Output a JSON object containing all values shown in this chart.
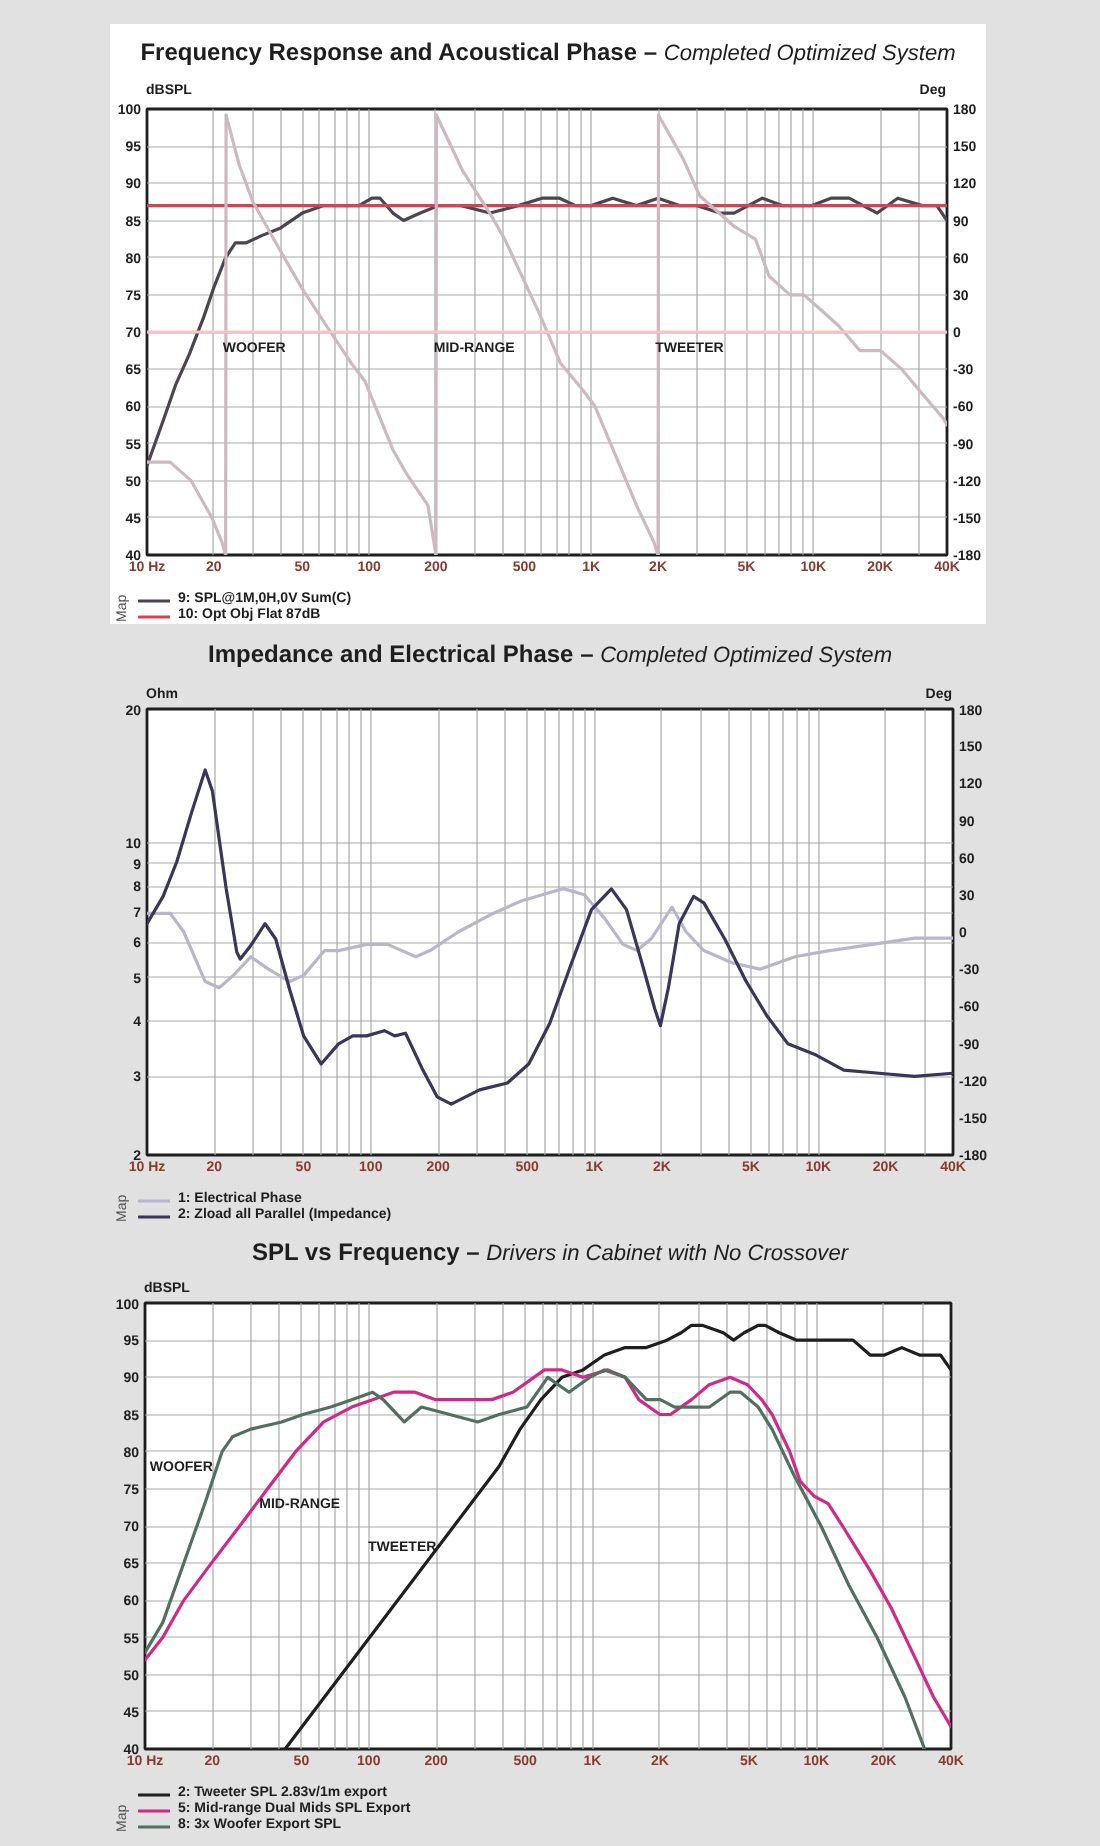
{
  "chart_data": [
    {
      "type": "line",
      "title": "Frequency Response and Acoustical Phase –",
      "subtitle": "Completed Optimized System",
      "ylabel": "dBSPL",
      "y2label": "Deg",
      "legend_title": "Map",
      "log": "x",
      "grid": true,
      "legend": "bottom left",
      "xlim": [
        10,
        40000
      ],
      "xticks": [
        {
          "value": 10,
          "label": "10 Hz"
        },
        20,
        {
          "value": 30,
          "label": null
        },
        {
          "value": 40,
          "label": null
        },
        50,
        {
          "value": 60,
          "label": null
        },
        {
          "value": 70,
          "label": null
        },
        {
          "value": 80,
          "label": null
        },
        {
          "value": 90,
          "label": null
        },
        100,
        200,
        {
          "value": 300,
          "label": null
        },
        {
          "value": 400,
          "label": null
        },
        500,
        {
          "value": 600,
          "label": null
        },
        {
          "value": 700,
          "label": null
        },
        {
          "value": 800,
          "label": null
        },
        {
          "value": 900,
          "label": null
        },
        {
          "value": 1000,
          "label": "1K"
        },
        {
          "value": 2000,
          "label": "2K"
        },
        {
          "value": 3000,
          "label": null
        },
        {
          "value": 4000,
          "label": null
        },
        {
          "value": 5000,
          "label": "5K"
        },
        {
          "value": 6000,
          "label": null
        },
        {
          "value": 7000,
          "label": null
        },
        {
          "value": 8000,
          "label": null
        },
        {
          "value": 9000,
          "label": null
        },
        {
          "value": 10000,
          "label": "10K"
        },
        {
          "value": 20000,
          "label": "20K"
        },
        {
          "value": 30000,
          "label": null
        },
        {
          "value": 40000,
          "label": "40K"
        }
      ],
      "ylim": [
        40,
        100
      ],
      "yticks": [
        40,
        45,
        50,
        55,
        60,
        65,
        70,
        75,
        80,
        85,
        90,
        95,
        100
      ],
      "y2lim": [
        -180,
        180
      ],
      "y2ticks": [
        -180,
        -150,
        -120,
        -90,
        -60,
        -30,
        0,
        30,
        60,
        90,
        120,
        150,
        180
      ],
      "ref_lines": [
        {
          "axis": "y2",
          "value": 0,
          "color": "#f3c6c6"
        }
      ],
      "annotations": [
        "WOOFER",
        "MID-RANGE",
        "TWEETER"
      ],
      "series": [
        {
          "name": "9: SPL@1M,0H,0V Sum(C)",
          "color": "#4d4352",
          "x": [
            10,
            11.8,
            13.5,
            15.5,
            18,
            20,
            22.6,
            25,
            28,
            33,
            40,
            50,
            62,
            75,
            90,
            103,
            112,
            128,
            143,
            170,
            205,
            260,
            350,
            470,
            600,
            720,
            850,
            1000,
            1250,
            1600,
            2000,
            2500,
            3000,
            3800,
            4400,
            5900,
            7300,
            9800,
            12000,
            14500,
            19400,
            24000,
            31000,
            36000,
            40000
          ],
          "values": [
            52,
            58,
            63,
            67,
            72,
            76,
            80,
            82,
            82,
            83,
            84,
            86,
            87,
            87,
            87,
            88,
            88,
            86,
            85,
            86,
            87,
            87,
            86,
            87,
            88,
            88,
            87,
            87,
            88,
            87,
            88,
            87,
            87,
            86,
            86,
            88,
            87,
            87,
            88,
            88,
            86,
            88,
            87,
            87,
            85
          ]
        },
        {
          "name": "10: Opt Obj Flat 87dB",
          "color": "#d9414e",
          "x": [
            10,
            40000
          ],
          "values": [
            87,
            87
          ]
        },
        {
          "color": "#cdb9c1",
          "axis": "y2",
          "x": [
            10,
            12.7,
            15.8,
            19.6,
            21.8,
            22.6
          ],
          "values": [
            -105,
            -105,
            -120,
            -150,
            -170,
            -180
          ]
        },
        {
          "color": "#cdb9c1",
          "axis": "y2",
          "x": [
            22.6,
            22.7
          ],
          "values": [
            -180,
            175
          ]
        },
        {
          "color": "#cdb9c1",
          "axis": "y2",
          "x": [
            22.7,
            26,
            30,
            40,
            50,
            67,
            83,
            96,
            128,
            148,
            184,
            198,
            200
          ],
          "values": [
            175,
            135,
            105,
            65,
            35,
            0,
            -25,
            -40,
            -95,
            -115,
            -140,
            -175,
            -180
          ]
        },
        {
          "color": "#cdb9c1",
          "axis": "y2",
          "x": [
            200,
            201
          ],
          "values": [
            -180,
            175
          ]
        },
        {
          "color": "#cdb9c1",
          "axis": "y2",
          "x": [
            201,
            264,
            352,
            408,
            488,
            584,
            726,
            900,
            1040,
            1290,
            1600,
            1920,
            2000
          ],
          "values": [
            175,
            130,
            95,
            75,
            45,
            15,
            -25,
            -45,
            -60,
            -100,
            -140,
            -170,
            -180
          ]
        },
        {
          "color": "#cdb9c1",
          "axis": "y2",
          "x": [
            2000,
            2010
          ],
          "values": [
            -180,
            175
          ]
        },
        {
          "color": "#cdb9c1",
          "axis": "y2",
          "x": [
            2010,
            2590,
            3080,
            3820,
            4420,
            5490,
            6330,
            7860,
            9080,
            10500,
            13000,
            16200,
            20100,
            25000,
            31000,
            38600,
            40000
          ],
          "values": [
            175,
            140,
            110,
            95,
            85,
            75,
            45,
            30,
            30,
            20,
            5,
            -15,
            -15,
            -30,
            -50,
            -70,
            -75
          ]
        }
      ]
    },
    {
      "type": "line",
      "title": "Impedance and Electrical Phase –",
      "subtitle": "Completed Optimized System",
      "ylabel": "Ohm",
      "y2label": "Deg",
      "legend_title": "Map",
      "log": "xy",
      "grid": true,
      "legend": "bottom left",
      "xlim": [
        10,
        40000
      ],
      "xticks": [
        {
          "value": 10,
          "label": "10 Hz"
        },
        20,
        {
          "value": 30,
          "label": null
        },
        {
          "value": 40,
          "label": null
        },
        50,
        {
          "value": 60,
          "label": null
        },
        {
          "value": 70,
          "label": null
        },
        {
          "value": 80,
          "label": null
        },
        {
          "value": 90,
          "label": null
        },
        100,
        200,
        {
          "value": 300,
          "label": null
        },
        {
          "value": 400,
          "label": null
        },
        500,
        {
          "value": 600,
          "label": null
        },
        {
          "value": 700,
          "label": null
        },
        {
          "value": 800,
          "label": null
        },
        {
          "value": 900,
          "label": null
        },
        {
          "value": 1000,
          "label": "1K"
        },
        {
          "value": 2000,
          "label": "2K"
        },
        {
          "value": 3000,
          "label": null
        },
        {
          "value": 4000,
          "label": null
        },
        {
          "value": 5000,
          "label": "5K"
        },
        {
          "value": 6000,
          "label": null
        },
        {
          "value": 7000,
          "label": null
        },
        {
          "value": 8000,
          "label": null
        },
        {
          "value": 9000,
          "label": null
        },
        {
          "value": 10000,
          "label": "10K"
        },
        {
          "value": 20000,
          "label": "20K"
        },
        {
          "value": 30000,
          "label": null
        },
        {
          "value": 40000,
          "label": "40K"
        }
      ],
      "ylim": [
        2,
        20
      ],
      "yticks": [
        2,
        3,
        4,
        5,
        6,
        7,
        8,
        9,
        10,
        20
      ],
      "y2lim": [
        -180,
        180
      ],
      "y2ticks": [
        -180,
        -150,
        -120,
        -90,
        -60,
        -30,
        0,
        30,
        60,
        90,
        120,
        150,
        180
      ],
      "series": [
        {
          "name": "1: Electrical Phase",
          "color": "#b9b6cc",
          "axis": "y2",
          "x": [
            10,
            12.7,
            14.6,
            18.2,
            21,
            24.3,
            29.1,
            34.9,
            43.4,
            50.1,
            62.2,
            71.8,
            95.9,
            119,
            159,
            184,
            246,
            352,
            470,
            584,
            726,
            901,
            1120,
            1340,
            1550,
            1800,
            2220,
            2570,
            3080,
            4140,
            5490,
            7860,
            11200,
            17500,
            26900,
            40000
          ],
          "values": [
            15,
            15,
            0,
            -40,
            -45,
            -35,
            -20,
            -30,
            -40,
            -35,
            -15,
            -15,
            -10,
            -10,
            -20,
            -15,
            0,
            15,
            25,
            30,
            35,
            30,
            10,
            -10,
            -15,
            -5,
            20,
            0,
            -15,
            -25,
            -30,
            -20,
            -15,
            -10,
            -5,
            -5
          ]
        },
        {
          "name": "2: Zload all Parallel (Impedance)",
          "color": "#38365a",
          "x": [
            10,
            11.8,
            13.6,
            15.8,
            18.2,
            19.6,
            22.6,
            25.2,
            26.1,
            29.1,
            33.7,
            37.6,
            43.4,
            50.1,
            60,
            71.8,
            83.1,
            95.9,
            115,
            128,
            143,
            171,
            198,
            229,
            306,
            408,
            508,
            631,
            780,
            969,
            1190,
            1390,
            1610,
            1860,
            1970,
            2140,
            2390,
            2770,
            3080,
            3820,
            4760,
            5900,
            7320,
            9780,
            13000,
            18700,
            26900,
            40000
          ],
          "values": [
            6.6,
            7.6,
            9.1,
            11.7,
            14.6,
            13.1,
            7.9,
            5.7,
            5.5,
            5.9,
            6.6,
            6.1,
            4.7,
            3.7,
            3.2,
            3.55,
            3.7,
            3.7,
            3.8,
            3.7,
            3.75,
            3.1,
            2.7,
            2.6,
            2.8,
            2.9,
            3.2,
            3.95,
            5.3,
            7.1,
            7.9,
            7.1,
            5.5,
            4.25,
            3.9,
            4.75,
            6.6,
            7.6,
            7.35,
            6.1,
            4.9,
            4.1,
            3.55,
            3.35,
            3.1,
            3.05,
            3,
            3.05
          ]
        }
      ]
    },
    {
      "type": "line",
      "title": "SPL vs Frequency –",
      "subtitle": "Drivers in Cabinet with No Crossover",
      "ylabel": "dBSPL",
      "legend_title": "Map",
      "log": "x",
      "grid": true,
      "legend": "bottom left",
      "xlim": [
        10,
        40000
      ],
      "xticks": [
        {
          "value": 10,
          "label": "10 Hz"
        },
        20,
        {
          "value": 30,
          "label": null
        },
        {
          "value": 40,
          "label": null
        },
        50,
        {
          "value": 60,
          "label": null
        },
        {
          "value": 70,
          "label": null
        },
        {
          "value": 80,
          "label": null
        },
        {
          "value": 90,
          "label": null
        },
        100,
        200,
        {
          "value": 300,
          "label": null
        },
        {
          "value": 400,
          "label": null
        },
        500,
        {
          "value": 600,
          "label": null
        },
        {
          "value": 700,
          "label": null
        },
        {
          "value": 800,
          "label": null
        },
        {
          "value": 900,
          "label": null
        },
        {
          "value": 1000,
          "label": "1K"
        },
        {
          "value": 2000,
          "label": "2K"
        },
        {
          "value": 3000,
          "label": null
        },
        {
          "value": 4000,
          "label": null
        },
        {
          "value": 5000,
          "label": "5K"
        },
        {
          "value": 6000,
          "label": null
        },
        {
          "value": 7000,
          "label": null
        },
        {
          "value": 8000,
          "label": null
        },
        {
          "value": 9000,
          "label": null
        },
        {
          "value": 10000,
          "label": "10K"
        },
        {
          "value": 20000,
          "label": "20K"
        },
        {
          "value": 30000,
          "label": null
        },
        {
          "value": 40000,
          "label": "40K"
        }
      ],
      "ylim": [
        40,
        100
      ],
      "yticks": [
        40,
        45,
        50,
        55,
        60,
        65,
        70,
        75,
        80,
        85,
        90,
        95,
        100
      ],
      "annotations": [
        "WOOFER",
        "MID-RANGE",
        "TWEETER"
      ],
      "series": [
        {
          "name": "2: Tweeter SPL 2.83v/1m export",
          "color": "#1f1f1f",
          "x": [
            42.3,
            382,
            474,
            588,
            730,
            906,
            1130,
            1400,
            1740,
            2150,
            2490,
            2770,
            3090,
            3840,
            4270,
            4760,
            5500,
            5910,
            6830,
            8180,
            9790,
            12200,
            14600,
            17400,
            20200,
            24100,
            28900,
            35900,
            40000
          ],
          "values": [
            40,
            78,
            83,
            87,
            90,
            91,
            93,
            94,
            94,
            95,
            96,
            97,
            97,
            96,
            95,
            96,
            97,
            97,
            96,
            95,
            95,
            95,
            95,
            93,
            93,
            94,
            93,
            93,
            91
          ]
        },
        {
          "name": "5: Mid-range Dual Mids SPL Export",
          "color": "#cf2a8a",
          "x": [
            10,
            12,
            14.9,
            19.8,
            26.5,
            35.3,
            47.1,
            62.9,
            83.9,
            104,
            129,
            161,
            199,
            266,
            355,
            441,
            547,
            610,
            730,
            906,
            1170,
            1400,
            1610,
            2000,
            2230,
            2770,
            3320,
            4120,
            4930,
            5700,
            6350,
            7610,
            8480,
            9790,
            11300,
            13100,
            15100,
            17400,
            21600,
            26900,
            33400,
            40000
          ],
          "values": [
            52,
            55,
            60,
            65,
            70,
            75,
            80,
            84,
            86,
            87,
            88,
            88,
            87,
            87,
            87,
            88,
            90,
            91,
            91,
            90,
            91,
            90,
            87,
            85,
            85,
            87,
            89,
            90,
            89,
            87,
            85,
            80,
            76,
            74,
            73,
            70,
            67,
            64,
            59,
            53,
            47,
            43
          ]
        },
        {
          "name": "8: 3x Woofer Export SPL",
          "color": "#52705f",
          "x": [
            10,
            12,
            14.9,
            18.5,
            22.1,
            24.6,
            29.5,
            40.8,
            50.8,
            67.6,
            83.9,
            104,
            116,
            144,
            172,
            230,
            307,
            382,
            509,
            631,
            785,
            971,
            1130,
            1400,
            1740,
            2010,
            2330,
            2770,
            3330,
            4120,
            4590,
            5500,
            6350,
            7900,
            10500,
            14000,
            18700,
            24900,
            30500
          ],
          "values": [
            53,
            57,
            65,
            73,
            80,
            82,
            83,
            84,
            85,
            86,
            87,
            88,
            87,
            84,
            86,
            85,
            84,
            85,
            86,
            90,
            88,
            90,
            91,
            90,
            87,
            87,
            86,
            86,
            86,
            88,
            88,
            86,
            83,
            77,
            70,
            62,
            55,
            47,
            40
          ]
        }
      ]
    }
  ]
}
